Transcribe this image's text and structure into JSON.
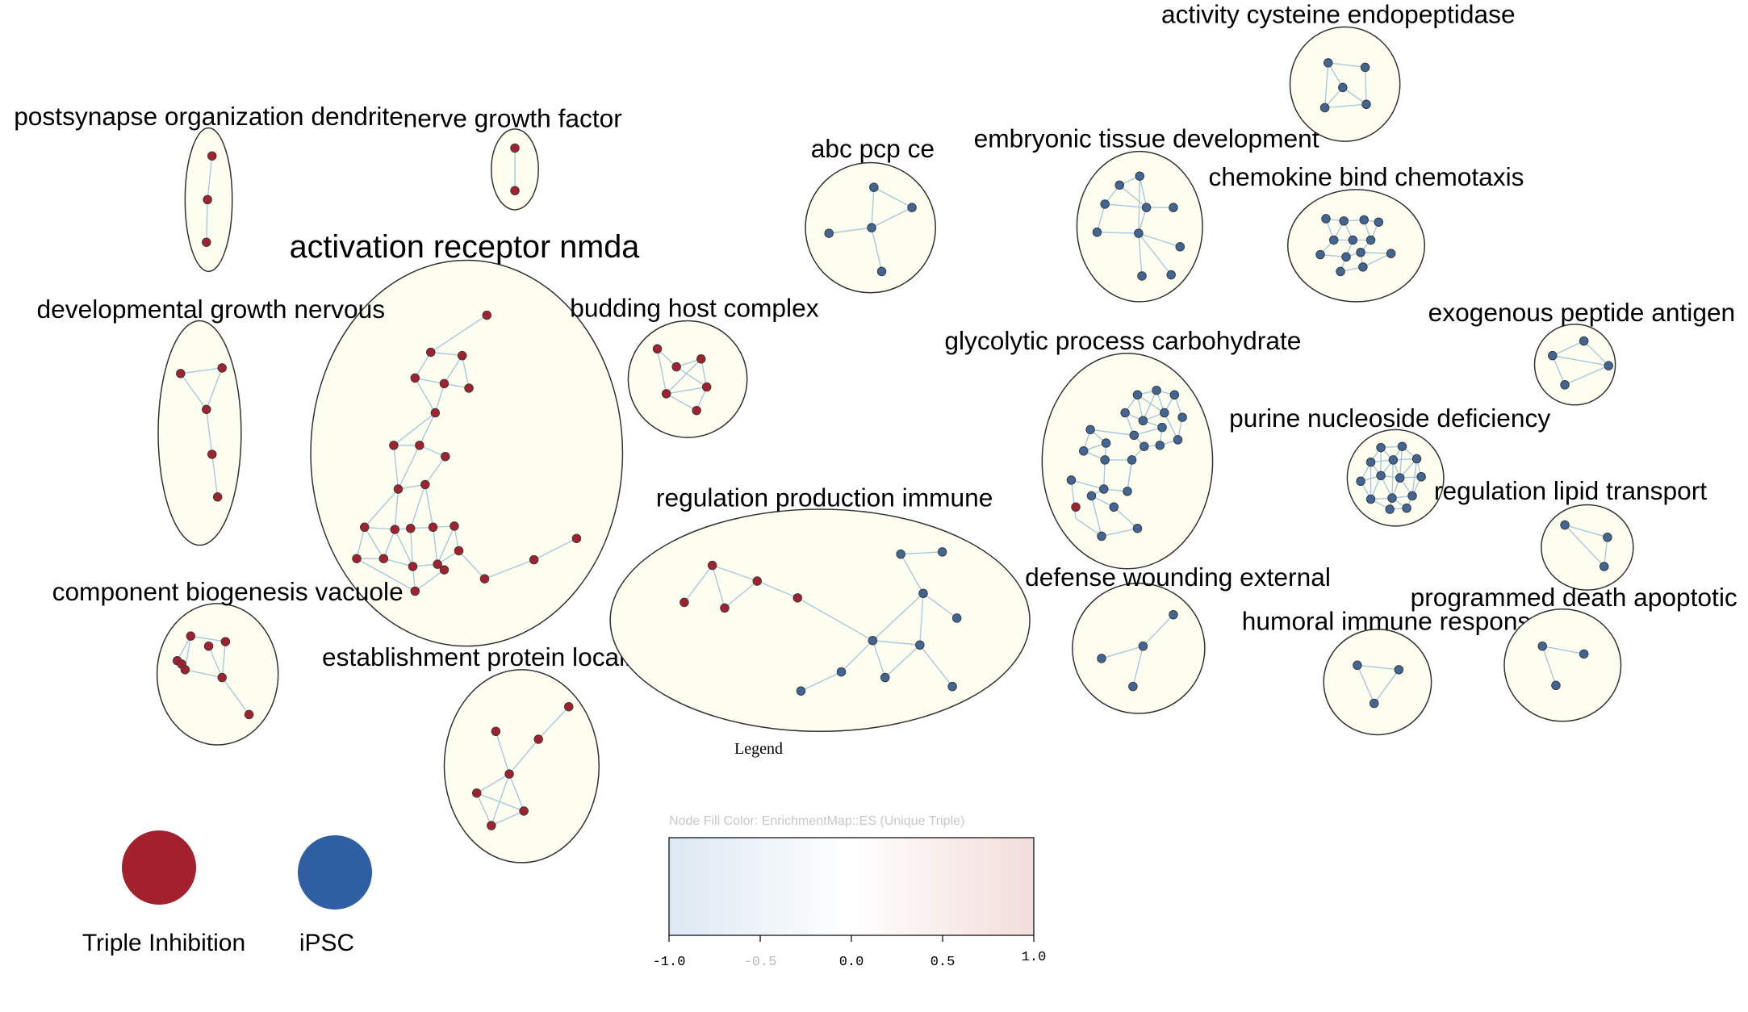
{
  "colors": {
    "triple_inhibition": "#a3202f",
    "ipsc": "#2f5fa3",
    "cluster_fill": "#fdfdf0",
    "edge": "#9ec3dc",
    "gradient_low": "#dde8f3",
    "gradient_mid": "#ffffff",
    "gradient_high": "#f2ddda"
  },
  "clusters": [
    {
      "id": "c1",
      "label": "postsynapse organization dendrite",
      "group": "triple"
    },
    {
      "id": "c2",
      "label": "nerve growth factor",
      "group": "triple"
    },
    {
      "id": "c3",
      "label": "activation receptor nmda",
      "group": "triple"
    },
    {
      "id": "c4",
      "label": "developmental growth nervous",
      "group": "triple"
    },
    {
      "id": "c5",
      "label": "budding host complex",
      "group": "triple"
    },
    {
      "id": "c6",
      "label": "component biogenesis vacuole",
      "group": "triple"
    },
    {
      "id": "c7",
      "label": "establishment protein localization",
      "group": "triple"
    },
    {
      "id": "c8",
      "label": "regulation production immune",
      "group": "mixed"
    },
    {
      "id": "c9",
      "label": "abc pcp ce",
      "group": "ipsc"
    },
    {
      "id": "c10",
      "label": "embryonic tissue development",
      "group": "ipsc"
    },
    {
      "id": "c11",
      "label": "activity cysteine endopeptidase",
      "group": "ipsc"
    },
    {
      "id": "c12",
      "label": "chemokine bind chemotaxis",
      "group": "ipsc"
    },
    {
      "id": "c13",
      "label": "glycolytic process carbohydrate",
      "group": "ipsc"
    },
    {
      "id": "c14",
      "label": "exogenous peptide antigen",
      "group": "ipsc"
    },
    {
      "id": "c15",
      "label": "purine nucleoside deficiency",
      "group": "ipsc"
    },
    {
      "id": "c16",
      "label": "regulation lipid transport",
      "group": "ipsc"
    },
    {
      "id": "c17",
      "label": "defense wounding external",
      "group": "ipsc"
    },
    {
      "id": "c18",
      "label": "humoral immune response",
      "group": "ipsc"
    },
    {
      "id": "c19",
      "label": "programmed death apoptotic",
      "group": "ipsc"
    }
  ],
  "legend": {
    "title": "Legend",
    "items": [
      {
        "label": "Triple Inhibition",
        "color": "#a3202f"
      },
      {
        "label": "iPSC",
        "color": "#2f5fa3"
      }
    ],
    "color_bar": {
      "title": "Node Fill Color:  EnrichmentMap::ES (Unique Triple)",
      "ticks": [
        "-1.0",
        "-0.5",
        "0.0",
        "0.5",
        "1.0"
      ]
    }
  }
}
